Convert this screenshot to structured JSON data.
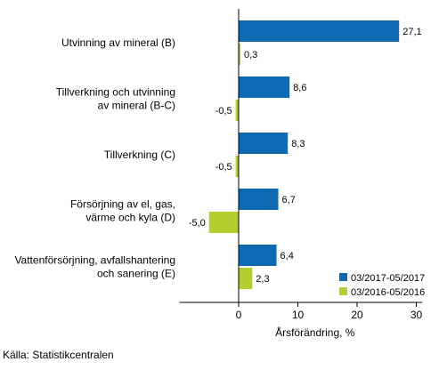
{
  "chart_data": {
    "type": "bar",
    "orientation": "horizontal",
    "categories": [
      [
        "Utvinning av mineral (B)"
      ],
      [
        "Tillverkning och utvinning",
        "av mineral (B-C)"
      ],
      [
        "Tillverkning (C)"
      ],
      [
        "Försörjning av el, gas,",
        "värme och kyla (D)"
      ],
      [
        "Vattenförsörjning, avfallshantering",
        "och sanering (E)"
      ]
    ],
    "series": [
      {
        "name": "03/2017-05/2017",
        "color": "#0f6ab4",
        "values": [
          27.1,
          8.6,
          8.3,
          6.7,
          6.4
        ],
        "labels": [
          "27,1",
          "8,6",
          "8,3",
          "6,7",
          "6,4"
        ]
      },
      {
        "name": "03/2016-05/2016",
        "color": "#b3cf2f",
        "values": [
          0.3,
          -0.5,
          -0.5,
          -5.0,
          2.3
        ],
        "labels": [
          "0,3",
          "-0,5",
          "-0,5",
          "-5,0",
          "2,3"
        ]
      }
    ],
    "xlabel": "Årsförändring, %",
    "xlim": [
      -10,
      31
    ],
    "xticks": [
      0,
      10,
      20,
      30
    ],
    "xtick_labels": [
      "0",
      "10",
      "20",
      "30"
    ],
    "grid": false,
    "legend": "bottom-right",
    "source": "Källa: Statistikcentralen"
  }
}
